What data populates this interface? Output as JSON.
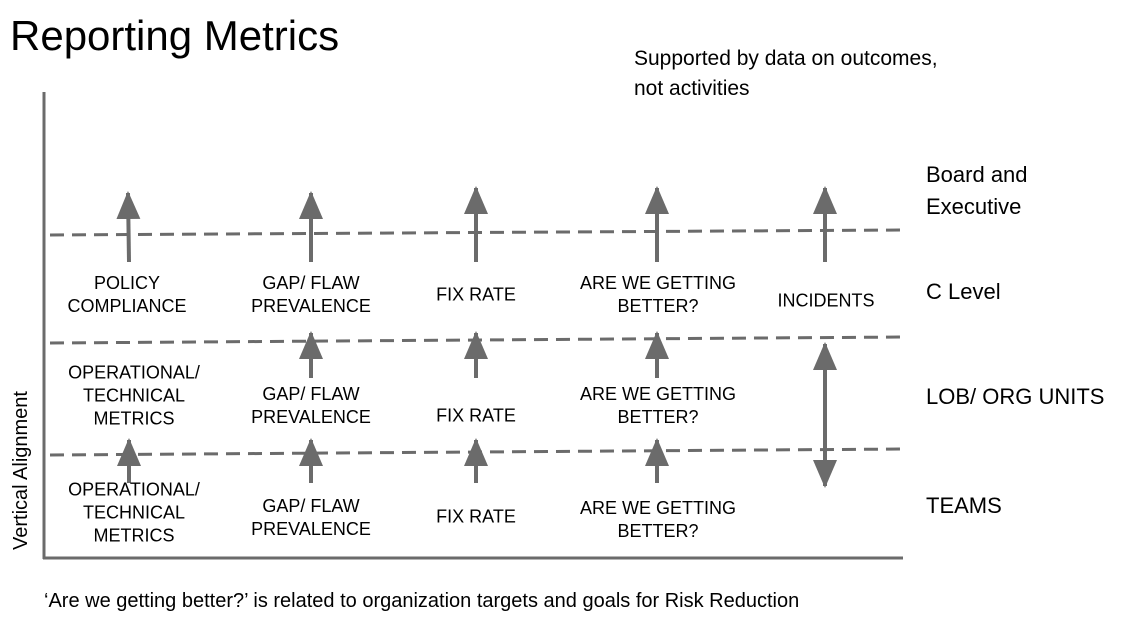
{
  "title": "Reporting Metrics",
  "note": [
    "Supported by data on outcomes,",
    "not activities"
  ],
  "axis_label": "Vertical Alignment",
  "levels": {
    "board": [
      "Board and",
      "Executive"
    ],
    "c_level": "C Level",
    "lob": "LOB/ ORG UNITS",
    "teams": "TEAMS"
  },
  "metrics": {
    "c_level": [
      [
        "POLICY",
        "COMPLIANCE"
      ],
      [
        "GAP/ FLAW",
        "PREVALENCE"
      ],
      [
        "FIX RATE"
      ],
      [
        "ARE WE GETTING",
        "BETTER?"
      ],
      [
        "INCIDENTS"
      ]
    ],
    "lob": [
      [
        "OPERATIONAL/",
        "TECHNICAL",
        "METRICS"
      ],
      [
        "GAP/ FLAW",
        "PREVALENCE"
      ],
      [
        "FIX RATE"
      ],
      [
        "ARE WE GETTING",
        "BETTER?"
      ]
    ],
    "teams": [
      [
        "OPERATIONAL/",
        "TECHNICAL",
        "METRICS"
      ],
      [
        "GAP/ FLAW",
        "PREVALENCE"
      ],
      [
        "FIX RATE"
      ],
      [
        "ARE WE GETTING",
        "BETTER?"
      ]
    ]
  },
  "footer": "‘Are we getting better?’ is related to organization targets and goals for Risk Reduction",
  "colors": {
    "line": "#6b6b6b",
    "text": "#000000"
  },
  "icons": [
    "arrow-up-icon",
    "double-headed-arrow-icon"
  ]
}
